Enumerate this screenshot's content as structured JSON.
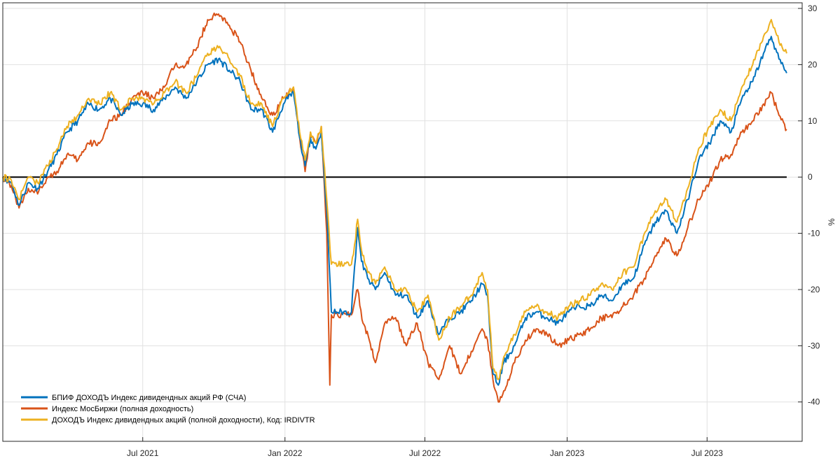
{
  "chart_data": {
    "type": "line",
    "title": "",
    "xlabel": "",
    "ylabel": "%",
    "ylim": [
      -47,
      31
    ],
    "xlim": [
      "2021-01-01",
      "2023-11-01"
    ],
    "grid": true,
    "y_axis_side": "right",
    "legend_placement": "bottom-left",
    "x_ticks": [
      {
        "date": "2021-07-01",
        "label": "Jul 2021"
      },
      {
        "date": "2022-01-01",
        "label": "Jan 2022"
      },
      {
        "date": "2022-07-01",
        "label": "Jul 2022"
      },
      {
        "date": "2023-01-01",
        "label": "Jan 2023"
      },
      {
        "date": "2023-07-01",
        "label": "Jul 2023"
      }
    ],
    "y_ticks": [
      30,
      20,
      10,
      0,
      -10,
      -20,
      -30,
      -40
    ],
    "zero_line": 0,
    "series": [
      {
        "name": "БПИФ ДОХОДЪ Индекс дивидендных акций РФ (СЧА)",
        "color": "#0072BD",
        "points": [
          [
            "2021-01-01",
            0
          ],
          [
            "2021-01-12",
            -1
          ],
          [
            "2021-01-22",
            -5
          ],
          [
            "2021-02-03",
            -1
          ],
          [
            "2021-02-15",
            -2
          ],
          [
            "2021-02-28",
            1
          ],
          [
            "2021-03-12",
            4
          ],
          [
            "2021-03-25",
            8
          ],
          [
            "2021-04-08",
            10
          ],
          [
            "2021-04-22",
            13
          ],
          [
            "2021-05-06",
            12
          ],
          [
            "2021-05-20",
            14
          ],
          [
            "2021-06-03",
            11
          ],
          [
            "2021-06-17",
            13
          ],
          [
            "2021-07-01",
            13
          ],
          [
            "2021-07-15",
            12
          ],
          [
            "2021-07-29",
            14
          ],
          [
            "2021-08-12",
            16
          ],
          [
            "2021-08-26",
            14
          ],
          [
            "2021-09-09",
            17
          ],
          [
            "2021-09-23",
            20
          ],
          [
            "2021-10-07",
            21
          ],
          [
            "2021-10-21",
            19
          ],
          [
            "2021-11-04",
            17
          ],
          [
            "2021-11-18",
            12
          ],
          [
            "2021-12-02",
            12
          ],
          [
            "2021-12-16",
            8
          ],
          [
            "2021-12-30",
            13
          ],
          [
            "2022-01-12",
            15
          ],
          [
            "2022-01-20",
            7
          ],
          [
            "2022-01-27",
            2
          ],
          [
            "2022-02-03",
            7
          ],
          [
            "2022-02-10",
            5
          ],
          [
            "2022-02-17",
            8
          ],
          [
            "2022-02-24",
            -6
          ],
          [
            "2022-03-02",
            -24
          ],
          [
            "2022-03-28",
            -24
          ],
          [
            "2022-04-01",
            -16
          ],
          [
            "2022-04-05",
            -9
          ],
          [
            "2022-04-10",
            -15
          ],
          [
            "2022-04-18",
            -18
          ],
          [
            "2022-04-28",
            -20
          ],
          [
            "2022-05-10",
            -17
          ],
          [
            "2022-05-24",
            -21
          ],
          [
            "2022-06-07",
            -21
          ],
          [
            "2022-06-21",
            -25
          ],
          [
            "2022-07-05",
            -22
          ],
          [
            "2022-07-19",
            -28
          ],
          [
            "2022-08-02",
            -25
          ],
          [
            "2022-08-16",
            -24
          ],
          [
            "2022-08-30",
            -22
          ],
          [
            "2022-09-13",
            -19
          ],
          [
            "2022-09-20",
            -21
          ],
          [
            "2022-09-27",
            -35
          ],
          [
            "2022-10-04",
            -37
          ],
          [
            "2022-10-11",
            -33
          ],
          [
            "2022-10-25",
            -30
          ],
          [
            "2022-11-08",
            -25
          ],
          [
            "2022-11-22",
            -24
          ],
          [
            "2022-12-06",
            -25
          ],
          [
            "2022-12-20",
            -26
          ],
          [
            "2023-01-03",
            -24
          ],
          [
            "2023-01-17",
            -23
          ],
          [
            "2023-01-31",
            -23
          ],
          [
            "2023-02-14",
            -21
          ],
          [
            "2023-02-28",
            -22
          ],
          [
            "2023-03-14",
            -19
          ],
          [
            "2023-03-28",
            -18
          ],
          [
            "2023-04-11",
            -12
          ],
          [
            "2023-04-25",
            -8
          ],
          [
            "2023-05-09",
            -6
          ],
          [
            "2023-05-23",
            -10
          ],
          [
            "2023-06-06",
            -4
          ],
          [
            "2023-06-20",
            3
          ],
          [
            "2023-07-04",
            6
          ],
          [
            "2023-07-18",
            10
          ],
          [
            "2023-08-01",
            8
          ],
          [
            "2023-08-15",
            14
          ],
          [
            "2023-08-29",
            17
          ],
          [
            "2023-09-12",
            22
          ],
          [
            "2023-09-22",
            25
          ],
          [
            "2023-10-02",
            21
          ],
          [
            "2023-10-12",
            18.5
          ]
        ]
      },
      {
        "name": "Индекс МосБиржи (полная доходность)",
        "color": "#D95319",
        "points": [
          [
            "2021-01-01",
            0
          ],
          [
            "2021-01-12",
            -1.5
          ],
          [
            "2021-01-22",
            -5.5
          ],
          [
            "2021-02-03",
            -2
          ],
          [
            "2021-02-15",
            -3
          ],
          [
            "2021-02-28",
            0
          ],
          [
            "2021-03-12",
            1
          ],
          [
            "2021-03-25",
            4
          ],
          [
            "2021-04-08",
            3
          ],
          [
            "2021-04-22",
            6
          ],
          [
            "2021-05-06",
            6
          ],
          [
            "2021-05-20",
            10
          ],
          [
            "2021-06-03",
            11
          ],
          [
            "2021-06-17",
            14
          ],
          [
            "2021-07-01",
            15
          ],
          [
            "2021-07-15",
            14
          ],
          [
            "2021-07-29",
            16
          ],
          [
            "2021-08-12",
            20
          ],
          [
            "2021-08-26",
            20
          ],
          [
            "2021-09-09",
            23
          ],
          [
            "2021-09-23",
            28
          ],
          [
            "2021-10-07",
            29
          ],
          [
            "2021-10-21",
            27
          ],
          [
            "2021-11-04",
            24
          ],
          [
            "2021-11-18",
            19
          ],
          [
            "2021-12-02",
            14
          ],
          [
            "2021-12-16",
            11
          ],
          [
            "2021-12-30",
            14
          ],
          [
            "2022-01-12",
            16
          ],
          [
            "2022-01-20",
            7
          ],
          [
            "2022-01-27",
            1
          ],
          [
            "2022-02-03",
            8
          ],
          [
            "2022-02-10",
            6
          ],
          [
            "2022-02-17",
            9
          ],
          [
            "2022-02-24",
            -10
          ],
          [
            "2022-02-28",
            -37
          ],
          [
            "2022-03-02",
            -24.5
          ],
          [
            "2022-03-28",
            -24.5
          ],
          [
            "2022-04-05",
            -20
          ],
          [
            "2022-04-12",
            -26
          ],
          [
            "2022-04-20",
            -29
          ],
          [
            "2022-04-28",
            -33
          ],
          [
            "2022-05-10",
            -26
          ],
          [
            "2022-05-24",
            -25
          ],
          [
            "2022-06-07",
            -30
          ],
          [
            "2022-06-21",
            -26
          ],
          [
            "2022-07-05",
            -33
          ],
          [
            "2022-07-19",
            -36
          ],
          [
            "2022-08-02",
            -30
          ],
          [
            "2022-08-16",
            -35
          ],
          [
            "2022-08-30",
            -31
          ],
          [
            "2022-09-13",
            -27
          ],
          [
            "2022-09-20",
            -29
          ],
          [
            "2022-09-27",
            -36
          ],
          [
            "2022-10-04",
            -40
          ],
          [
            "2022-10-11",
            -38
          ],
          [
            "2022-10-25",
            -33
          ],
          [
            "2022-11-08",
            -29
          ],
          [
            "2022-11-22",
            -27
          ],
          [
            "2022-12-06",
            -28
          ],
          [
            "2022-12-20",
            -30
          ],
          [
            "2023-01-03",
            -29
          ],
          [
            "2023-01-17",
            -28
          ],
          [
            "2023-01-31",
            -27
          ],
          [
            "2023-02-14",
            -25
          ],
          [
            "2023-02-28",
            -25
          ],
          [
            "2023-03-14",
            -23
          ],
          [
            "2023-03-28",
            -21
          ],
          [
            "2023-04-11",
            -18
          ],
          [
            "2023-04-25",
            -14
          ],
          [
            "2023-05-09",
            -11
          ],
          [
            "2023-05-23",
            -14
          ],
          [
            "2023-06-06",
            -9
          ],
          [
            "2023-06-20",
            -4
          ],
          [
            "2023-07-04",
            -1
          ],
          [
            "2023-07-18",
            3
          ],
          [
            "2023-08-01",
            4
          ],
          [
            "2023-08-15",
            8
          ],
          [
            "2023-08-29",
            10
          ],
          [
            "2023-09-12",
            13
          ],
          [
            "2023-09-22",
            15
          ],
          [
            "2023-10-02",
            11
          ],
          [
            "2023-10-12",
            8.5
          ]
        ]
      },
      {
        "name": "ДОХОДЪ Индекс дивидендных акций (полной доходности), Код: IRDIVTR",
        "color": "#EDB120",
        "points": [
          [
            "2021-01-01",
            0
          ],
          [
            "2021-01-12",
            -0.5
          ],
          [
            "2021-01-22",
            -4
          ],
          [
            "2021-02-03",
            0
          ],
          [
            "2021-02-15",
            -1
          ],
          [
            "2021-02-28",
            2
          ],
          [
            "2021-03-12",
            5
          ],
          [
            "2021-03-25",
            9
          ],
          [
            "2021-04-08",
            11
          ],
          [
            "2021-04-22",
            14
          ],
          [
            "2021-05-06",
            13
          ],
          [
            "2021-05-20",
            15
          ],
          [
            "2021-06-03",
            12
          ],
          [
            "2021-06-17",
            14
          ],
          [
            "2021-07-01",
            14
          ],
          [
            "2021-07-15",
            13
          ],
          [
            "2021-07-29",
            15
          ],
          [
            "2021-08-12",
            17
          ],
          [
            "2021-08-26",
            15
          ],
          [
            "2021-09-09",
            18
          ],
          [
            "2021-09-23",
            22
          ],
          [
            "2021-10-07",
            23
          ],
          [
            "2021-10-21",
            21
          ],
          [
            "2021-11-04",
            18
          ],
          [
            "2021-11-18",
            13
          ],
          [
            "2021-12-02",
            13
          ],
          [
            "2021-12-16",
            9
          ],
          [
            "2021-12-30",
            14
          ],
          [
            "2022-01-12",
            16
          ],
          [
            "2022-01-20",
            8
          ],
          [
            "2022-01-27",
            3
          ],
          [
            "2022-02-03",
            8
          ],
          [
            "2022-02-10",
            6
          ],
          [
            "2022-02-17",
            9
          ],
          [
            "2022-02-24",
            -4
          ],
          [
            "2022-03-02",
            -15.5
          ],
          [
            "2022-03-28",
            -15.5
          ],
          [
            "2022-04-01",
            -12
          ],
          [
            "2022-04-05",
            -7.5
          ],
          [
            "2022-04-10",
            -13
          ],
          [
            "2022-04-18",
            -17
          ],
          [
            "2022-04-28",
            -19
          ],
          [
            "2022-05-10",
            -16
          ],
          [
            "2022-05-24",
            -20
          ],
          [
            "2022-06-07",
            -20
          ],
          [
            "2022-06-21",
            -24
          ],
          [
            "2022-07-05",
            -21
          ],
          [
            "2022-07-19",
            -29
          ],
          [
            "2022-08-02",
            -25
          ],
          [
            "2022-08-16",
            -23
          ],
          [
            "2022-08-30",
            -21
          ],
          [
            "2022-09-13",
            -17
          ],
          [
            "2022-09-20",
            -20
          ],
          [
            "2022-09-27",
            -34
          ],
          [
            "2022-10-04",
            -36
          ],
          [
            "2022-10-11",
            -32
          ],
          [
            "2022-10-25",
            -28
          ],
          [
            "2022-11-08",
            -24
          ],
          [
            "2022-11-22",
            -23
          ],
          [
            "2022-12-06",
            -24
          ],
          [
            "2022-12-20",
            -25
          ],
          [
            "2023-01-03",
            -23
          ],
          [
            "2023-01-17",
            -22
          ],
          [
            "2023-01-31",
            -21
          ],
          [
            "2023-02-14",
            -19
          ],
          [
            "2023-02-28",
            -20
          ],
          [
            "2023-03-14",
            -17
          ],
          [
            "2023-03-28",
            -16
          ],
          [
            "2023-04-11",
            -10
          ],
          [
            "2023-04-25",
            -6
          ],
          [
            "2023-05-09",
            -4
          ],
          [
            "2023-05-23",
            -8
          ],
          [
            "2023-06-06",
            -2
          ],
          [
            "2023-06-20",
            5
          ],
          [
            "2023-07-04",
            9
          ],
          [
            "2023-07-18",
            12
          ],
          [
            "2023-08-01",
            10
          ],
          [
            "2023-08-15",
            16
          ],
          [
            "2023-08-29",
            20
          ],
          [
            "2023-09-12",
            25
          ],
          [
            "2023-09-22",
            28
          ],
          [
            "2023-10-02",
            24
          ],
          [
            "2023-10-12",
            22
          ]
        ]
      }
    ]
  }
}
